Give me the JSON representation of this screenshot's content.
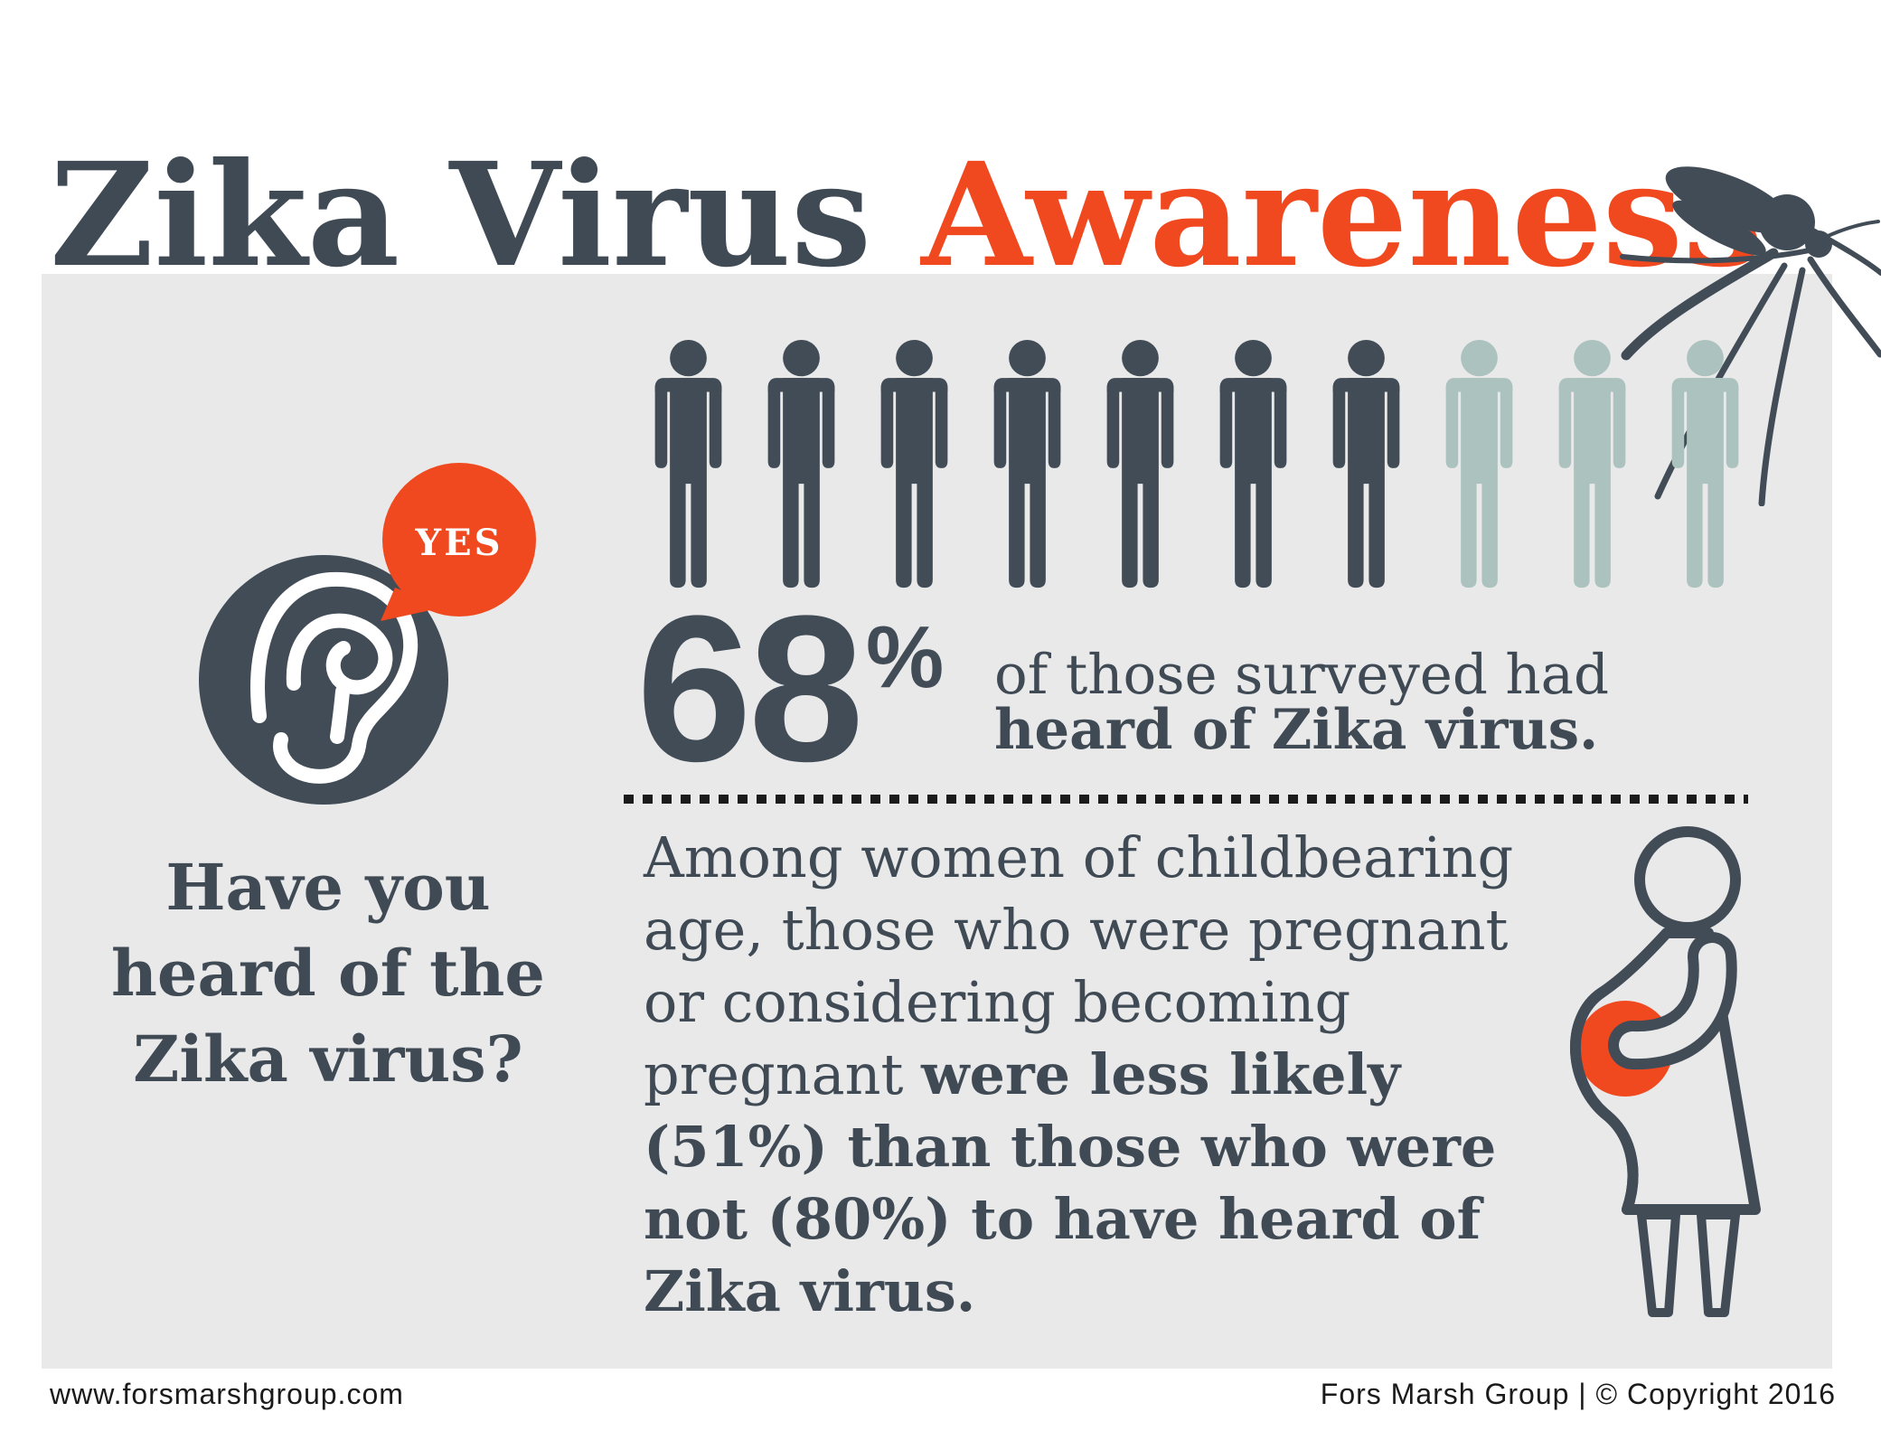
{
  "title": {
    "text_dark": "Zika Virus",
    "text_accent": "Awareness"
  },
  "question": {
    "bubble_label": "YES",
    "lines": [
      "Have you",
      "heard of the",
      "Zika virus?"
    ]
  },
  "stat": {
    "percent_value": "68",
    "percent_sign": "%",
    "caption_regular": "of those surveyed had",
    "caption_bold": "heard of Zika virus."
  },
  "pictograph": {
    "total": 10,
    "highlighted": 7
  },
  "paragraph": {
    "regular": "Among women of childbearing age, those who were pregnant or considering becoming pregnant ",
    "bold": "were less likely (51%) than those who were not (80%) to have heard of Zika virus."
  },
  "footer": {
    "website": "www.forsmarshgroup.com",
    "credit": "Fors Marsh Group | © Copyright 2016"
  },
  "colors": {
    "slate": "#414C57",
    "accent_orange": "#F1491F",
    "sage": "#ACC2BE",
    "panel_gray": "#E9E9E9",
    "divider_black": "#1B1B1B",
    "footer_text": "#1A1A1A"
  },
  "chart_data": {
    "type": "pictograph",
    "title": "Zika Virus Awareness",
    "units_total": 10,
    "units_filled": 7,
    "value_percent": 68,
    "description": "68% of those surveyed had heard of Zika virus.",
    "series": [
      {
        "name": "All surveyed who had heard of Zika virus",
        "value": 68
      },
      {
        "name": "Women of childbearing age, pregnant or considering becoming pregnant, who had heard of Zika virus",
        "value": 51
      },
      {
        "name": "Women of childbearing age, not pregnant or considering, who had heard of Zika virus",
        "value": 80
      }
    ],
    "legend_position": "none",
    "grid": false
  }
}
